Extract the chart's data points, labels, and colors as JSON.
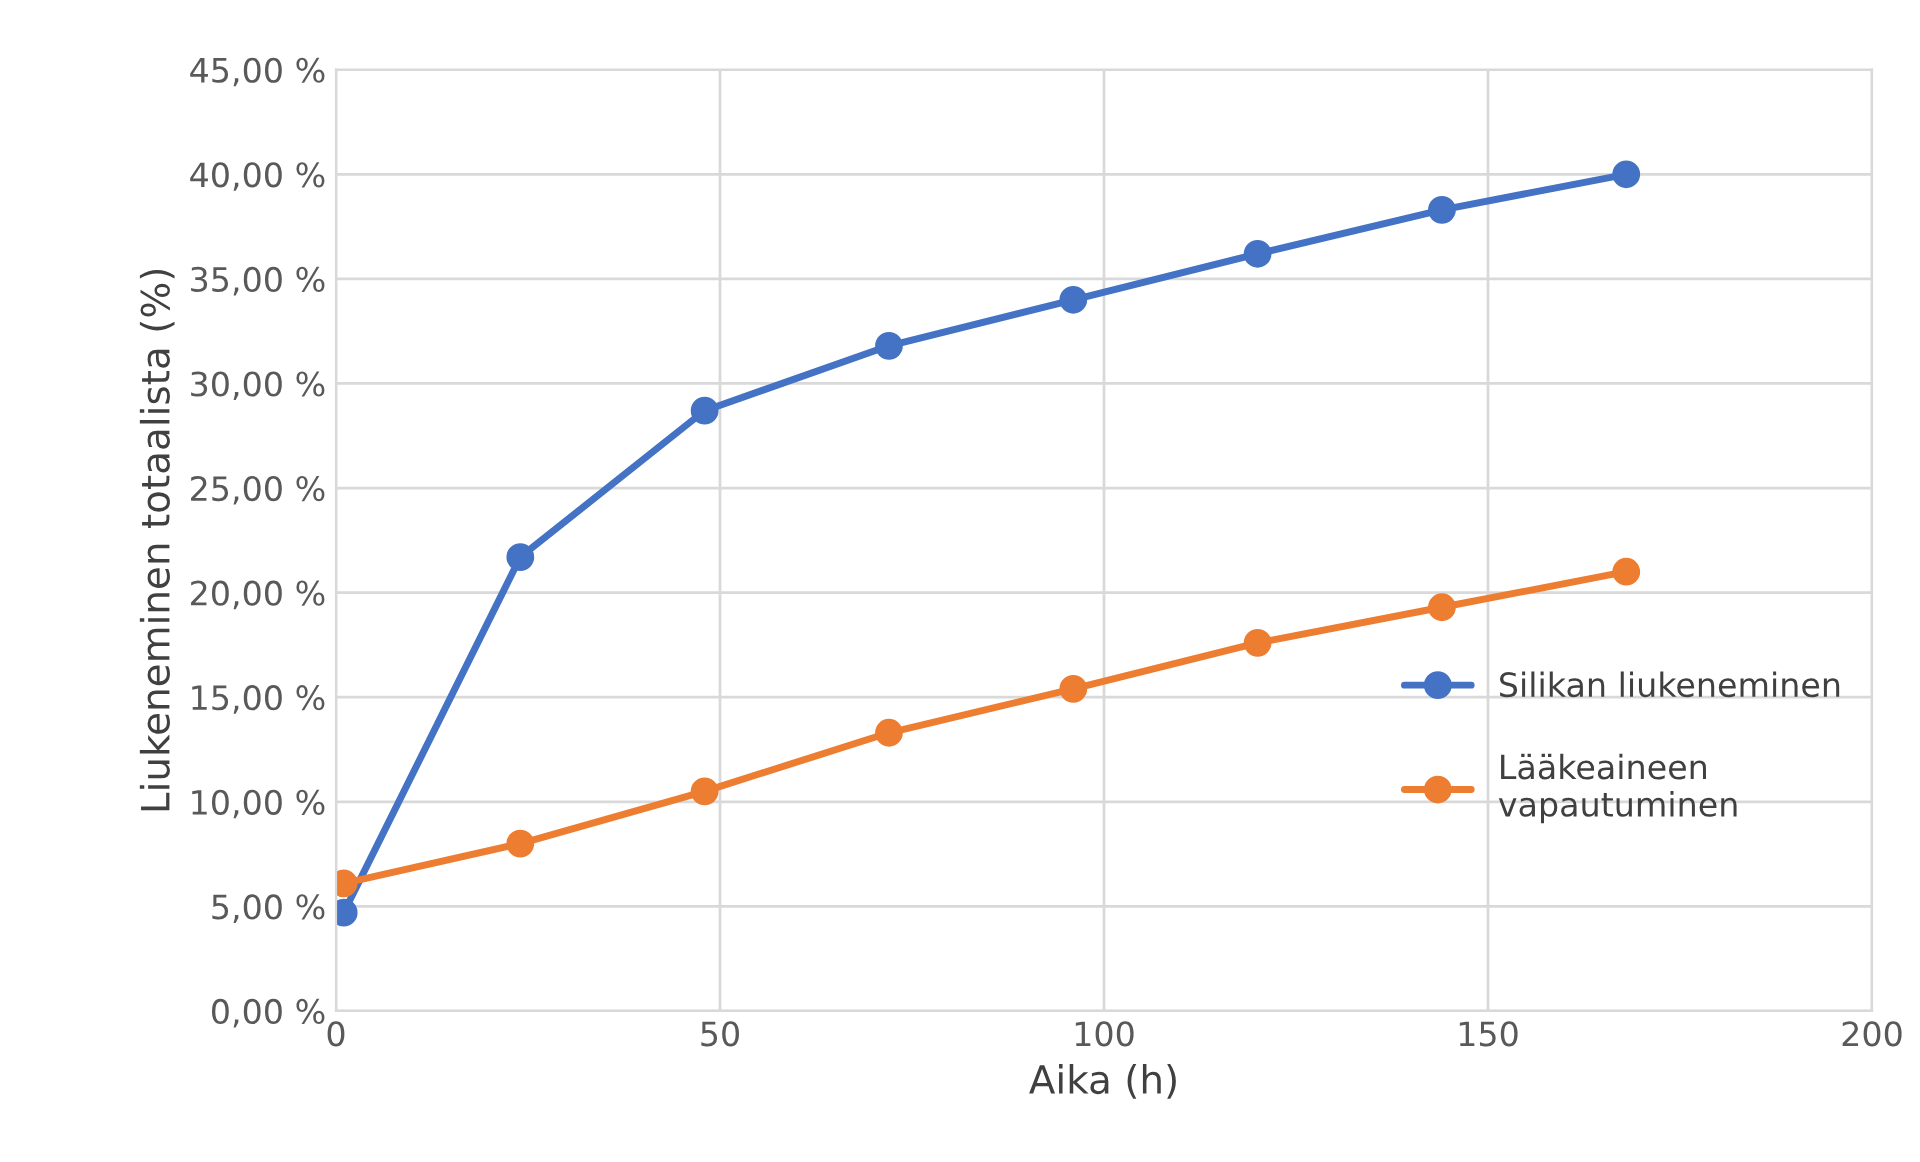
{
  "chart_data": {
    "type": "line",
    "xlabel": "Aika (h)",
    "ylabel": "Liukeneminen totaalista (%)",
    "xlim": [
      0,
      200
    ],
    "xticks": [
      0,
      50,
      100,
      150,
      200
    ],
    "ylim": [
      0,
      45
    ],
    "yticks": [
      {
        "value": 0,
        "label": "0,00 %"
      },
      {
        "value": 5,
        "label": "5,00 %"
      },
      {
        "value": 10,
        "label": "10,00 %"
      },
      {
        "value": 15,
        "label": "15,00 %"
      },
      {
        "value": 20,
        "label": "20,00 %"
      },
      {
        "value": 25,
        "label": "25,00 %"
      },
      {
        "value": 30,
        "label": "30,00 %"
      },
      {
        "value": 35,
        "label": "35,00 %"
      },
      {
        "value": 40,
        "label": "40,00 %"
      },
      {
        "value": 45,
        "label": "45,00 %"
      }
    ],
    "x": [
      1,
      24,
      48,
      72,
      96,
      120,
      144,
      168
    ],
    "series": [
      {
        "name": "Silikan liukeneminen",
        "color": "#4472c4",
        "values": [
          4.7,
          21.7,
          28.7,
          31.8,
          34.0,
          36.2,
          38.3,
          40.0
        ]
      },
      {
        "name": "Lääkeaineen\nvapautuminen",
        "color": "#ed7d31",
        "values": [
          6.1,
          8.0,
          10.5,
          13.3,
          15.4,
          17.6,
          19.3,
          21.0
        ]
      }
    ],
    "grid": true,
    "legend": "right",
    "marker": "circle",
    "line_style": "solid"
  }
}
